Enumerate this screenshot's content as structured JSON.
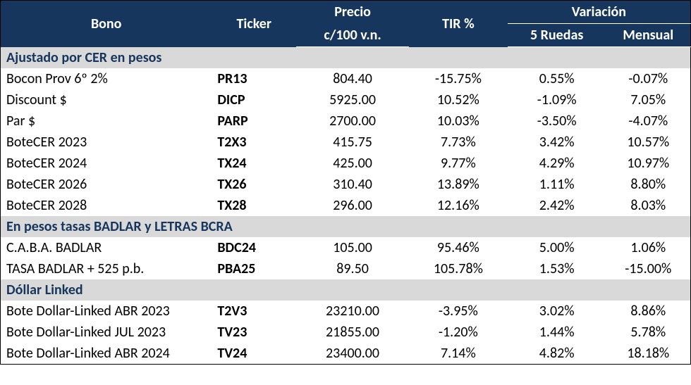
{
  "header": {
    "bono": "Bono",
    "ticker": "Ticker",
    "precio_line1": "Precio",
    "precio_line2": "c/100 v.n.",
    "tir": "TIR %",
    "variacion": "Variación",
    "ruedas5": "5 Ruedas",
    "mensual": "Mensual"
  },
  "colors": {
    "header_bg": "#17365d",
    "header_fg": "#ffffff",
    "section_bg": "#d9d9d9",
    "section_fg": "#17365d",
    "text": "#000000",
    "border": "#000000"
  },
  "sections": [
    {
      "title": "Ajustado por CER en pesos",
      "rows": [
        {
          "bono": "Bocon Prov 6º 2%",
          "ticker": "PR13",
          "price": "804.40",
          "tir": "-15.75%",
          "r5": "0.55%",
          "men": "-0.07%"
        },
        {
          "bono": "Discount $",
          "ticker": "DICP",
          "price": "5925.00",
          "tir": "10.52%",
          "r5": "-1.09%",
          "men": "7.05%"
        },
        {
          "bono": "Par $",
          "ticker": "PARP",
          "price": "2700.00",
          "tir": "10.03%",
          "r5": "-3.50%",
          "men": "-4.07%"
        },
        {
          "bono": "BoteCER 2023",
          "ticker": "T2X3",
          "price": "415.75",
          "tir": "7.73%",
          "r5": "3.42%",
          "men": "10.57%"
        },
        {
          "bono": "BoteCER 2024",
          "ticker": "TX24",
          "price": "425.00",
          "tir": "9.77%",
          "r5": "4.29%",
          "men": "10.97%"
        },
        {
          "bono": "BoteCER 2026",
          "ticker": "TX26",
          "price": "310.40",
          "tir": "13.89%",
          "r5": "1.11%",
          "men": "8.80%"
        },
        {
          "bono": "BoteCER 2028",
          "ticker": "TX28",
          "price": "296.00",
          "tir": "12.16%",
          "r5": "2.42%",
          "men": "8.03%"
        }
      ]
    },
    {
      "title": "En pesos tasas BADLAR y LETRAS BCRA",
      "rows": [
        {
          "bono": "C.A.B.A. BADLAR",
          "ticker": "BDC24",
          "price": "105.00",
          "tir": "95.46%",
          "r5": "5.00%",
          "men": "1.06%"
        },
        {
          "bono": "TASA BADLAR + 525 p.b.",
          "ticker": "PBA25",
          "price": "89.50",
          "tir": "105.78%",
          "r5": "1.53%",
          "men": "-15.00%"
        }
      ]
    },
    {
      "title": "Dóllar Linked",
      "rows": [
        {
          "bono": "Bote Dollar-Linked   ABR 2023",
          "ticker": "T2V3",
          "price": "23210.00",
          "tir": "-3.95%",
          "r5": "3.02%",
          "men": "8.86%"
        },
        {
          "bono": "Bote Dollar-Linked JUL 2023",
          "ticker": "TV23",
          "price": "21855.00",
          "tir": "-1.20%",
          "r5": "1.44%",
          "men": "5.78%"
        },
        {
          "bono": "Bote Dollar-Linked ABR 2024",
          "ticker": "TV24",
          "price": "23400.00",
          "tir": "7.14%",
          "r5": "4.82%",
          "men": "18.18%"
        }
      ]
    }
  ]
}
